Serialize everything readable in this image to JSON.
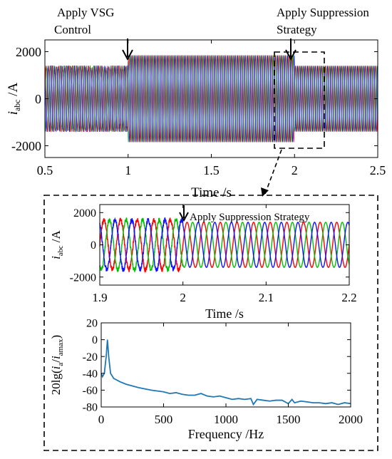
{
  "annotations": {
    "apply_vsg_line1": "Apply VSG",
    "apply_vsg_line2": "Control",
    "apply_supp_line1": "Apply Suppression",
    "apply_supp_line2": "Strategy",
    "apply_supp_zoom": "Apply Suppression Strategy"
  },
  "chart_data": [
    {
      "id": "top",
      "type": "line",
      "xlabel": "Time /s",
      "ylabel_main": "i",
      "ylabel_sub": "abc",
      "ylabel_unit": " /A",
      "xlim": [
        0.5,
        2.5
      ],
      "ylim": [
        -2500,
        2500
      ],
      "xticks": [
        "0.5",
        "1",
        "1.5",
        "2",
        "2.5"
      ],
      "yticks": [
        "2000",
        "0",
        "-2000"
      ],
      "ytick_values": [
        2000,
        0,
        -2000
      ],
      "series": [
        {
          "color": "#ff0000",
          "phase_deg": 0
        },
        {
          "color": "#00b000",
          "phase_deg": 120
        },
        {
          "color": "#1010ff",
          "phase_deg": 240
        }
      ],
      "frequency_hz": 50,
      "amplitude_segments": [
        {
          "t_start": 0.5,
          "t_end": 1.0,
          "amplitude": 1400
        },
        {
          "t_start": 1.0,
          "t_end": 2.0,
          "amplitude": 1850
        },
        {
          "t_start": 2.0,
          "t_end": 2.5,
          "amplitude": 1400
        }
      ],
      "pre_vsg_noise": 300
    },
    {
      "id": "zoom",
      "type": "line",
      "xlabel": "Time /s",
      "ylabel_main": "i",
      "ylabel_sub": "abc",
      "ylabel_unit": " /A",
      "xlim": [
        1.9,
        2.2
      ],
      "ylim": [
        -2500,
        2500
      ],
      "xticks": [
        "1.9",
        "2",
        "2.1",
        "2.2"
      ],
      "yticks": [
        "2000",
        "0",
        "-2000"
      ],
      "ytick_values": [
        2000,
        0,
        -2000
      ],
      "series": [
        {
          "color": "#ff0000",
          "phase_deg": 0
        },
        {
          "color": "#00c000",
          "phase_deg": 120
        },
        {
          "color": "#1010ff",
          "phase_deg": 240
        }
      ],
      "frequency_hz": 50,
      "switch_time": 2.0,
      "amplitude_before": 1550,
      "amplitude_after": 1400,
      "noise_before": 300
    },
    {
      "id": "spectrum",
      "type": "line",
      "xlabel": "Frequency /Hz",
      "ylabel": "20lg(ia/iamax)",
      "xlim": [
        0,
        2000
      ],
      "ylim": [
        -80,
        20
      ],
      "xticks": [
        "0",
        "500",
        "1000",
        "1500",
        "2000"
      ],
      "yticks": [
        "20",
        "0",
        "-20",
        "-40",
        "-60",
        "-80"
      ],
      "ytick_values": [
        20,
        0,
        -20,
        -40,
        -60,
        -80
      ],
      "series": [
        {
          "color": "#1f77b4",
          "x": [
            0,
            10,
            25,
            40,
            50,
            60,
            75,
            100,
            150,
            200,
            250,
            300,
            400,
            500,
            550,
            600,
            650,
            700,
            750,
            800,
            850,
            900,
            950,
            1000,
            1050,
            1100,
            1150,
            1200,
            1220,
            1250,
            1300,
            1350,
            1400,
            1450,
            1500,
            1530,
            1550,
            1600,
            1650,
            1700,
            1750,
            1800,
            1850,
            1900,
            1950,
            2000
          ],
          "y": [
            -40,
            -44,
            -40,
            -20,
            0,
            -20,
            -40,
            -46,
            -50,
            -53,
            -55,
            -57,
            -60,
            -62,
            -64,
            -63,
            -65,
            -66,
            -66,
            -64,
            -67,
            -68,
            -67,
            -69,
            -71,
            -70,
            -71,
            -70,
            -77,
            -71,
            -72,
            -73,
            -72,
            -72,
            -76,
            -71,
            -75,
            -73,
            -74,
            -75,
            -75,
            -76,
            -75,
            -77,
            -75,
            -76
          ]
        }
      ]
    }
  ]
}
